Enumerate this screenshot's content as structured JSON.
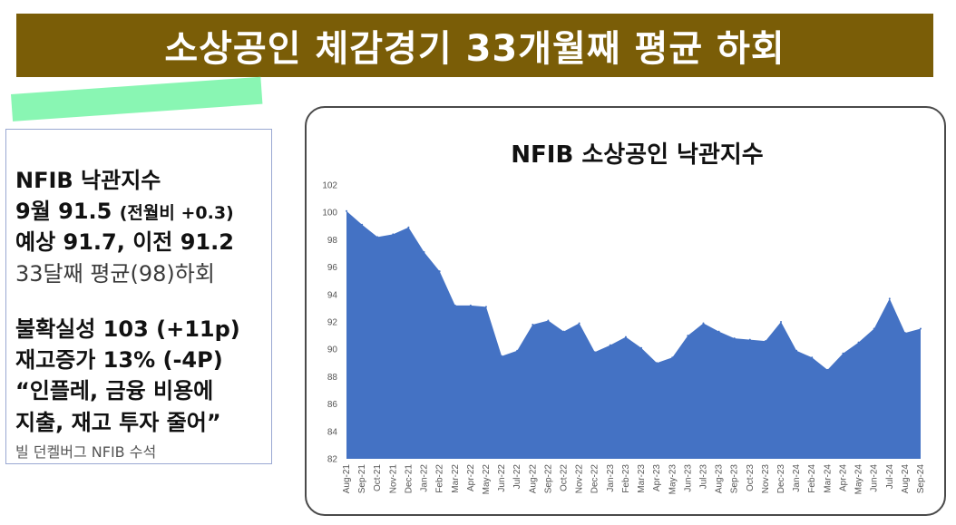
{
  "title": "소상공인 체감경기 33개월째 평균 하회",
  "info": {
    "line1": "NFIB 낙관지수",
    "line2_main": "9월 91.5 ",
    "line2_sub": "(전월비 +0.3)",
    "line3": "예상 91.7, 이전 91.2",
    "line4": "33달째 평균(98)하회",
    "line5": "불확실성 103 (+11p)",
    "line6": "재고증가 13% (-4P)",
    "line7": "“인플레, 금융 비용에",
    "line8": "지출, 재고 투자 줄어”",
    "line9": "빌 던켈버그 NFIB 수석"
  },
  "colors": {
    "title_bg": "#7a5d07",
    "area_fill": "#4472c4",
    "highlight": "#7ff5ad"
  },
  "chart_data": {
    "type": "area",
    "title": "NFIB 소상공인 낙관지수",
    "ylim": [
      82,
      102
    ],
    "yticks": [
      82,
      84,
      86,
      88,
      90,
      92,
      94,
      96,
      98,
      100,
      102
    ],
    "categories": [
      "Aug-21",
      "Sep-21",
      "Oct-21",
      "Nov-21",
      "Dec-21",
      "Jan-22",
      "Feb-22",
      "Mar-22",
      "Apr-22",
      "May-22",
      "Jun-22",
      "Jul-22",
      "Aug-22",
      "Sep-22",
      "Oct-22",
      "Nov-22",
      "Dec-22",
      "Jan-23",
      "Feb-23",
      "Mar-23",
      "Apr-23",
      "May-23",
      "Jun-23",
      "Jul-23",
      "Aug-23",
      "Sep-23",
      "Oct-23",
      "Nov-23",
      "Dec-23",
      "Jan-24",
      "Feb-24",
      "Mar-24",
      "Apr-24",
      "May-24",
      "Jun-24",
      "Jul-24",
      "Aug-24",
      "Sep-24"
    ],
    "values": [
      100.1,
      99.1,
      98.2,
      98.4,
      98.9,
      97.1,
      95.7,
      93.2,
      93.2,
      93.1,
      89.5,
      89.9,
      91.8,
      92.1,
      91.3,
      91.9,
      89.8,
      90.3,
      90.9,
      90.1,
      89.0,
      89.4,
      91.0,
      91.9,
      91.3,
      90.8,
      90.7,
      90.6,
      92.0,
      89.9,
      89.4,
      88.5,
      89.7,
      90.5,
      91.5,
      93.7,
      91.2,
      91.5
    ],
    "grid": false,
    "legend": "none"
  }
}
